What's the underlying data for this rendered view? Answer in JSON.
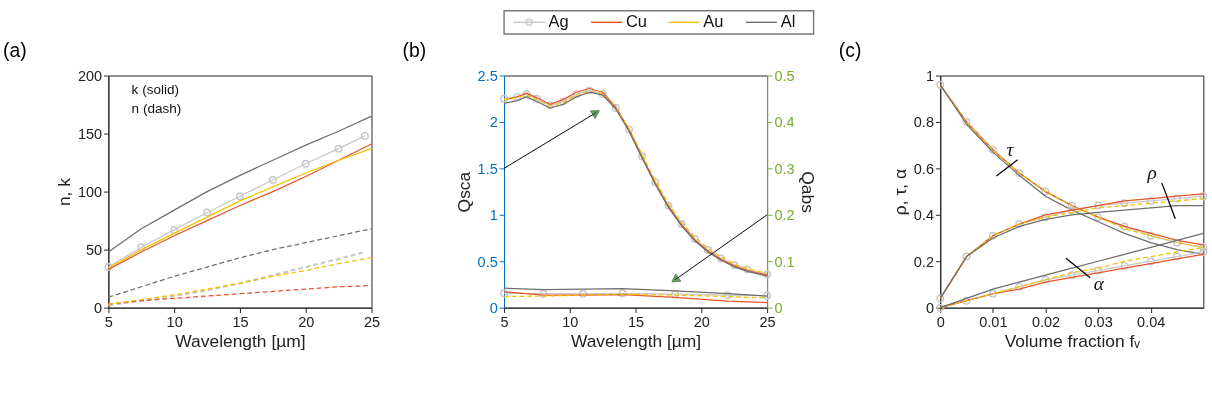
{
  "chart_data": [
    {
      "type": "line",
      "title": "(a)",
      "xlabel": "Wavelength [µm]",
      "ylabel": "n, k",
      "xlim": [
        5,
        25
      ],
      "xticks": [
        5,
        10,
        15,
        20,
        25
      ],
      "ylim": [
        0,
        200
      ],
      "yticks": [
        0,
        50,
        100,
        150,
        200
      ],
      "grid": false,
      "annotations": [
        "k (solid)",
        "n (dash)"
      ],
      "legend": "top",
      "series": [
        {
          "name": "Ag",
          "color": "#c8c8c8",
          "marker": "circle",
          "line_style": "solid",
          "x": [
            5,
            7.5,
            10,
            12.5,
            15,
            17.5,
            20,
            22.5,
            24.5
          ],
          "values": [
            35,
            52,
            67,
            82,
            96,
            110,
            124,
            137,
            148
          ]
        },
        {
          "name": "Cu",
          "color": "#e8542a",
          "line_style": "solid",
          "x": [
            5,
            7.5,
            10,
            12.5,
            15,
            17.5,
            20,
            22.5,
            25
          ],
          "values": [
            33,
            48,
            62,
            75,
            88,
            100,
            113,
            127,
            141
          ]
        },
        {
          "name": "Au",
          "color": "#f2c300",
          "line_style": "solid",
          "x": [
            5,
            7.5,
            10,
            12.5,
            15,
            17.5,
            20,
            22.5,
            25
          ],
          "values": [
            34,
            50,
            64,
            78,
            92,
            104,
            116,
            127,
            137
          ]
        },
        {
          "name": "Al",
          "color": "#6e6e6e",
          "line_style": "solid",
          "x": [
            5,
            7.5,
            10,
            12.5,
            15,
            17.5,
            20,
            22.5,
            25
          ],
          "values": [
            48,
            68,
            84,
            100,
            114,
            127,
            140,
            152,
            165
          ]
        },
        {
          "color": "#c8c8c8",
          "line_style": "dashed",
          "x": [
            5,
            7.5,
            10,
            12.5,
            15,
            17.5,
            20,
            22.5,
            24.5
          ],
          "values": [
            2,
            6,
            10,
            15,
            21,
            28,
            35,
            42,
            48
          ]
        },
        {
          "color": "#e8542a",
          "line_style": "dashed",
          "x": [
            5,
            7.5,
            10,
            12.5,
            15,
            17.5,
            20,
            22.5,
            25
          ],
          "values": [
            3,
            6,
            8,
            10,
            12,
            14,
            16,
            18,
            19
          ]
        },
        {
          "color": "#f2c300",
          "line_style": "dashed",
          "x": [
            5,
            7.5,
            10,
            12.5,
            15,
            17.5,
            20,
            22.5,
            25
          ],
          "values": [
            3,
            7,
            11,
            16,
            21,
            27,
            32,
            38,
            43
          ]
        },
        {
          "color": "#6e6e6e",
          "line_style": "dashed",
          "x": [
            5,
            7.5,
            10,
            12.5,
            15,
            17.5,
            20,
            22.5,
            25
          ],
          "values": [
            9,
            18,
            27,
            35,
            43,
            50,
            56,
            62,
            68
          ]
        }
      ]
    },
    {
      "type": "line",
      "title": "(b)",
      "xlabel": "Wavelength [µm]",
      "ylabel": "Qsca",
      "y2label": "Qabs",
      "xlim": [
        5,
        25
      ],
      "xticks": [
        5,
        10,
        15,
        20,
        25
      ],
      "ylim": [
        0,
        2.5
      ],
      "yticks": [
        0,
        0.5,
        1,
        1.5,
        2,
        2.5
      ],
      "y2lim": [
        0,
        0.5
      ],
      "y2ticks": [
        0,
        0.1,
        0.2,
        0.3,
        0.4,
        0.5
      ],
      "grid": false,
      "legend": "top",
      "series": [
        {
          "name": "Ag",
          "color": "#c8c8c8",
          "marker": "circle",
          "line_style": "solid",
          "x": [
            5,
            6,
            6.7,
            7.5,
            8.5,
            9.5,
            10.5,
            11.5,
            12.5,
            13.5,
            14.5,
            15.5,
            16.5,
            17.5,
            18.5,
            19.5,
            20.5,
            21.5,
            22.5,
            23.5,
            25
          ],
          "values": [
            2.25,
            2.27,
            2.3,
            2.25,
            2.18,
            2.22,
            2.3,
            2.34,
            2.3,
            2.15,
            1.92,
            1.63,
            1.35,
            1.1,
            0.9,
            0.74,
            0.62,
            0.53,
            0.46,
            0.41,
            0.36
          ]
        },
        {
          "name": "Cu",
          "color": "#e8542a",
          "line_style": "solid",
          "x": [
            5,
            6,
            6.7,
            7.5,
            8.5,
            9.5,
            10.5,
            11.5,
            12.5,
            13.5,
            14.5,
            15.5,
            16.5,
            17.5,
            18.5,
            19.5,
            20.5,
            21.5,
            22.5,
            23.5,
            25
          ],
          "values": [
            2.24,
            2.27,
            2.31,
            2.26,
            2.19,
            2.24,
            2.32,
            2.36,
            2.32,
            2.16,
            1.92,
            1.62,
            1.34,
            1.09,
            0.89,
            0.73,
            0.61,
            0.52,
            0.45,
            0.4,
            0.35
          ]
        },
        {
          "name": "Au",
          "color": "#f2c300",
          "line_style": "dashed",
          "x": [
            5,
            6,
            6.7,
            7.5,
            8.5,
            9.5,
            10.5,
            11.5,
            12.5,
            13.5,
            14.5,
            15.5,
            16.5,
            17.5,
            18.5,
            19.5,
            20.5,
            21.5,
            22.5,
            23.5,
            25
          ],
          "values": [
            2.24,
            2.26,
            2.29,
            2.24,
            2.17,
            2.21,
            2.29,
            2.33,
            2.3,
            2.15,
            1.93,
            1.65,
            1.37,
            1.12,
            0.92,
            0.76,
            0.64,
            0.55,
            0.47,
            0.42,
            0.37
          ]
        },
        {
          "name": "Al",
          "color": "#6e6e6e",
          "line_style": "solid",
          "x": [
            5,
            6,
            6.7,
            7.5,
            8.5,
            9.5,
            10.5,
            11.5,
            12.5,
            13.5,
            14.5,
            15.5,
            16.5,
            17.5,
            18.5,
            19.5,
            20.5,
            21.5,
            22.5,
            23.5,
            25
          ],
          "values": [
            2.2,
            2.23,
            2.27,
            2.22,
            2.15,
            2.19,
            2.27,
            2.32,
            2.29,
            2.14,
            1.9,
            1.61,
            1.33,
            1.08,
            0.88,
            0.72,
            0.6,
            0.51,
            0.44,
            0.39,
            0.34
          ]
        },
        {
          "name": "Ag",
          "color": "#c8c8c8",
          "marker": "circle",
          "line_style": "solid",
          "axis": "y2",
          "x": [
            5,
            8,
            11,
            14,
            18,
            22,
            25
          ],
          "values": [
            0.031,
            0.03,
            0.03,
            0.031,
            0.029,
            0.027,
            0.026
          ]
        },
        {
          "name": "Cu",
          "color": "#e8542a",
          "line_style": "solid",
          "axis": "y2",
          "x": [
            5,
            8,
            11,
            14,
            18,
            22,
            25
          ],
          "values": [
            0.034,
            0.027,
            0.027,
            0.028,
            0.022,
            0.014,
            0.011
          ]
        },
        {
          "name": "Au",
          "color": "#f2c300",
          "line_style": "dashed",
          "axis": "y2",
          "x": [
            5,
            8,
            11,
            14,
            18,
            22,
            25
          ],
          "values": [
            0.024,
            0.025,
            0.027,
            0.029,
            0.027,
            0.024,
            0.021
          ]
        },
        {
          "name": "Al",
          "color": "#6e6e6e",
          "line_style": "solid",
          "axis": "y2",
          "x": [
            5,
            8,
            11,
            14,
            18,
            22,
            25
          ],
          "values": [
            0.042,
            0.039,
            0.04,
            0.041,
            0.036,
            0.03,
            0.025
          ]
        }
      ]
    },
    {
      "type": "line",
      "title": "(c)",
      "xlabel": "Volume fraction fᵥ",
      "ylabel": "ρ, τ, α",
      "xlim": [
        0,
        0.05
      ],
      "xticks": [
        0,
        0.01,
        0.02,
        0.03,
        0.04
      ],
      "ylim": [
        0,
        1
      ],
      "yticks": [
        0,
        0.2,
        0.4,
        0.6,
        0.8,
        1
      ],
      "grid": false,
      "annotations": [
        "τ",
        "ρ",
        "α"
      ],
      "legend": "top",
      "series": [
        {
          "name": "Ag",
          "color": "#c8c8c8",
          "marker": "circle",
          "line_style": "solid",
          "x": [
            0,
            0.005,
            0.01,
            0.015,
            0.02,
            0.025,
            0.03,
            0.035,
            0.04,
            0.045,
            0.05
          ],
          "values": [
            0.96,
            0.8,
            0.68,
            0.58,
            0.5,
            0.44,
            0.39,
            0.35,
            0.31,
            0.28,
            0.26
          ]
        },
        {
          "name": "Cu",
          "color": "#e8542a",
          "line_style": "solid",
          "x": [
            0,
            0.005,
            0.01,
            0.015,
            0.02,
            0.025,
            0.03,
            0.035,
            0.04,
            0.045,
            0.05
          ],
          "values": [
            0.96,
            0.8,
            0.68,
            0.58,
            0.5,
            0.44,
            0.39,
            0.35,
            0.32,
            0.29,
            0.27
          ]
        },
        {
          "name": "Au",
          "color": "#f2c300",
          "line_style": "dashed",
          "x": [
            0,
            0.005,
            0.01,
            0.015,
            0.02,
            0.025,
            0.03,
            0.035,
            0.04,
            0.045,
            0.05
          ],
          "values": [
            0.96,
            0.8,
            0.68,
            0.58,
            0.5,
            0.44,
            0.39,
            0.34,
            0.31,
            0.28,
            0.26
          ]
        },
        {
          "name": "Al",
          "color": "#6e6e6e",
          "line_style": "solid",
          "x": [
            0,
            0.005,
            0.01,
            0.015,
            0.02,
            0.025,
            0.03,
            0.035,
            0.04,
            0.045,
            0.05
          ],
          "values": [
            0.96,
            0.79,
            0.67,
            0.57,
            0.48,
            0.42,
            0.37,
            0.32,
            0.28,
            0.25,
            0.23
          ]
        },
        {
          "name": "Ag",
          "color": "#c8c8c8",
          "marker": "circle",
          "line_style": "solid",
          "x": [
            0,
            0.005,
            0.01,
            0.015,
            0.02,
            0.025,
            0.03,
            0.035,
            0.04,
            0.045,
            0.05
          ],
          "values": [
            0.04,
            0.22,
            0.31,
            0.36,
            0.39,
            0.42,
            0.44,
            0.45,
            0.46,
            0.47,
            0.48
          ]
        },
        {
          "name": "Cu",
          "color": "#e8542a",
          "line_style": "solid",
          "x": [
            0,
            0.005,
            0.01,
            0.015,
            0.02,
            0.025,
            0.03,
            0.035,
            0.04,
            0.045,
            0.05
          ],
          "values": [
            0.04,
            0.22,
            0.31,
            0.36,
            0.4,
            0.42,
            0.44,
            0.46,
            0.47,
            0.48,
            0.49
          ]
        },
        {
          "name": "Au",
          "color": "#f2c300",
          "line_style": "dashed",
          "x": [
            0,
            0.005,
            0.01,
            0.015,
            0.02,
            0.025,
            0.03,
            0.035,
            0.04,
            0.045,
            0.05
          ],
          "values": [
            0.04,
            0.22,
            0.31,
            0.36,
            0.39,
            0.41,
            0.43,
            0.44,
            0.45,
            0.46,
            0.47
          ]
        },
        {
          "name": "Al",
          "color": "#6e6e6e",
          "line_style": "solid",
          "x": [
            0,
            0.005,
            0.01,
            0.015,
            0.02,
            0.025,
            0.03,
            0.035,
            0.04,
            0.045,
            0.05
          ],
          "values": [
            0.04,
            0.22,
            0.3,
            0.35,
            0.38,
            0.4,
            0.41,
            0.42,
            0.43,
            0.44,
            0.44
          ]
        },
        {
          "name": "Ag",
          "color": "#c8c8c8",
          "marker": "circle",
          "line_style": "solid",
          "x": [
            0,
            0.005,
            0.01,
            0.015,
            0.02,
            0.025,
            0.03,
            0.035,
            0.04,
            0.045,
            0.05
          ],
          "values": [
            0,
            0.03,
            0.06,
            0.09,
            0.12,
            0.14,
            0.16,
            0.18,
            0.2,
            0.22,
            0.24
          ]
        },
        {
          "name": "Cu",
          "color": "#e8542a",
          "line_style": "solid",
          "x": [
            0,
            0.005,
            0.01,
            0.015,
            0.02,
            0.025,
            0.03,
            0.035,
            0.04,
            0.045,
            0.05
          ],
          "values": [
            0,
            0.03,
            0.06,
            0.08,
            0.11,
            0.13,
            0.15,
            0.17,
            0.19,
            0.21,
            0.23
          ]
        },
        {
          "name": "Au",
          "color": "#f2c300",
          "line_style": "dashed",
          "x": [
            0,
            0.005,
            0.01,
            0.015,
            0.02,
            0.025,
            0.03,
            0.035,
            0.04,
            0.045,
            0.05
          ],
          "values": [
            0,
            0.03,
            0.06,
            0.09,
            0.12,
            0.15,
            0.17,
            0.2,
            0.22,
            0.24,
            0.26
          ]
        },
        {
          "name": "Al",
          "color": "#6e6e6e",
          "line_style": "solid",
          "x": [
            0,
            0.005,
            0.01,
            0.015,
            0.02,
            0.025,
            0.03,
            0.035,
            0.04,
            0.045,
            0.05
          ],
          "values": [
            0,
            0.04,
            0.08,
            0.11,
            0.14,
            0.17,
            0.2,
            0.23,
            0.26,
            0.29,
            0.32
          ]
        }
      ]
    }
  ]
}
